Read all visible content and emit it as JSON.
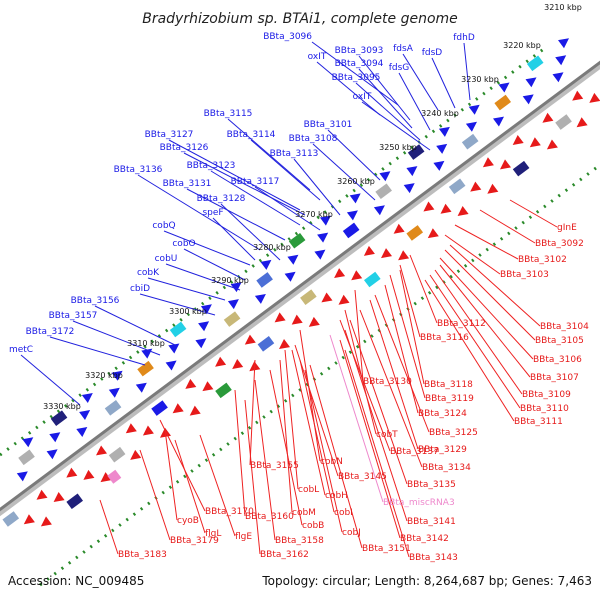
{
  "title": "Bradyrhizobium sp. BTAi1, complete genome",
  "accession": "Accession: NC_009485",
  "topology": "Topology: circular; Length: 8,264,687 bp; Genes: 7,463",
  "colors": {
    "forward_feature": "#1a1ae6",
    "reverse_feature": "#e61a1a",
    "misc_rna": "#ee88cc",
    "backbone": "#8a8a8a",
    "tick": "#2a8a2a"
  },
  "kbp_marks": [
    "3210 kbp",
    "3220 kbp",
    "3230 kbp",
    "3240 kbp",
    "3250 kbp",
    "3260 kbp",
    "3270 kbp",
    "3280 kbp",
    "3290 kbp",
    "3300 kbp",
    "3310 kbp",
    "3320 kbp",
    "3330 kbp"
  ],
  "top_labels": [
    "BBta_3096",
    "BBta_3093",
    "fdsA",
    "fdsD",
    "oxIT",
    "BBta_3094",
    "fdsG",
    "fdhD",
    "BBta_3095",
    "oxIT",
    "BBta_3115",
    "BBta_3101",
    "BBta_3127",
    "BBta_3114",
    "BBta_3108",
    "BBta_3126",
    "BBta_3113",
    "BBta_3123",
    "BBta_3136",
    "BBta_3131",
    "BBta_3117",
    "BBta_3128",
    "speF",
    "cobQ",
    "cobO",
    "cobU",
    "cobK",
    "cbiD",
    "BBta_3156",
    "BBta_3157",
    "BBta_3172",
    "metC"
  ],
  "bottom_labels": [
    "gInE",
    "BBta_3092",
    "BBta_3102",
    "BBta_3103",
    "BBta_3112",
    "BBta_3104",
    "BBta_3116",
    "BBta_3105",
    "BBta_3106",
    "BBta_3107",
    "BBta_3130",
    "BBta_3118",
    "BBta_3109",
    "BBta_3119",
    "BBta_3110",
    "BBta_3124",
    "BBta_3111",
    "cobT",
    "BBta_3125",
    "BBta_3137",
    "BBta_3129",
    "cobN",
    "BBta_3134",
    "BBta_3155",
    "BBta_3145",
    "BBta_3135",
    "cobL",
    "cobH",
    "BBta_miscRNA3",
    "cobM",
    "cobI",
    "BBta_3141",
    "BBta_3160",
    "cobB",
    "cobJ",
    "BBta_3142",
    "BBta_3170",
    "cyoB",
    "BBta_3158",
    "BBta_3151",
    "BBta_3143",
    "BBta_3179",
    "flgL",
    "flgE",
    "BBta_3162",
    "BBta_3183"
  ]
}
